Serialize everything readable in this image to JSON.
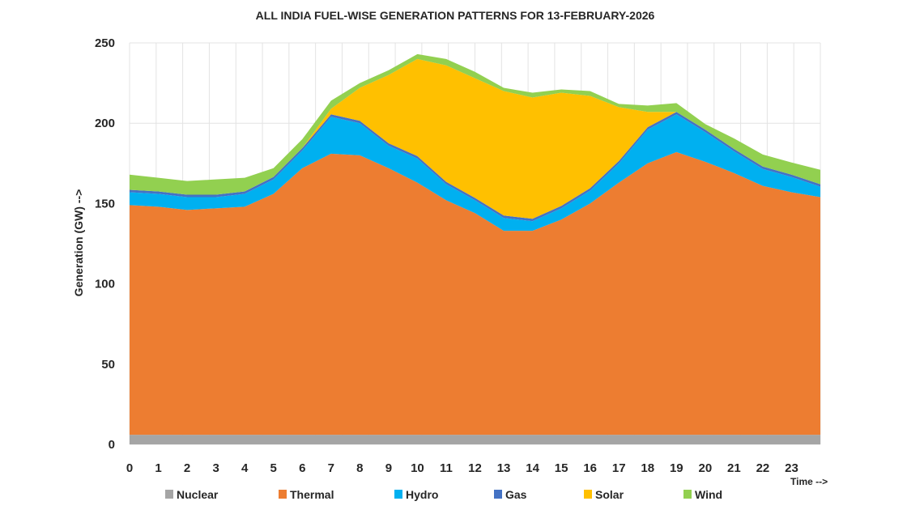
{
  "chart_data": {
    "type": "area",
    "stacked": true,
    "title": "ALL INDIA FUEL-WISE GENERATION PATTERNS FOR 13-FEBRUARY-2026",
    "xlabel": "Time -->",
    "ylabel": "Generation (GW) -->",
    "xlim": [
      0,
      24
    ],
    "ylim": [
      0,
      250
    ],
    "yticks": [
      0,
      50,
      100,
      150,
      200,
      250
    ],
    "xtick_labels": [
      "0",
      "1",
      "2",
      "3",
      "4",
      "5",
      "6",
      "7",
      "8",
      "9",
      "10",
      "11",
      "12",
      "13",
      "14",
      "15",
      "16",
      "17",
      "18",
      "19",
      "20",
      "21",
      "22",
      "23"
    ],
    "grid": true,
    "legend_position": "bottom",
    "x": [
      0,
      1,
      2,
      3,
      4,
      5,
      6,
      7,
      8,
      9,
      10,
      11,
      12,
      13,
      14,
      15,
      16,
      17,
      18,
      19,
      20,
      21,
      22,
      23,
      24
    ],
    "series": [
      {
        "name": "Nuclear",
        "color": "#a5a5a5",
        "values": [
          6,
          6,
          6,
          6,
          6,
          6,
          6,
          6,
          6,
          6,
          6,
          6,
          6,
          6,
          6,
          6,
          6,
          6,
          6,
          6,
          6,
          6,
          6,
          6,
          6
        ]
      },
      {
        "name": "Thermal",
        "color": "#ed7d31",
        "values": [
          143,
          142,
          140,
          141,
          142,
          150,
          166,
          175,
          174,
          166,
          157,
          146,
          138,
          127,
          127,
          134,
          144,
          157,
          169,
          176,
          170,
          163,
          155,
          151,
          148
        ]
      },
      {
        "name": "Hydro",
        "color": "#00b0f0",
        "values": [
          8,
          8,
          8,
          7,
          8,
          9,
          11,
          23,
          20,
          14,
          15,
          10,
          8,
          8,
          6,
          7,
          8,
          12,
          21,
          23.5,
          18.5,
          13.5,
          10.5,
          9.5,
          6.5
        ]
      },
      {
        "name": "Gas",
        "color": "#4472c4",
        "values": [
          1.5,
          1.5,
          1.5,
          1.5,
          1.5,
          1.5,
          1.5,
          1.5,
          1.5,
          1.5,
          1.5,
          1.5,
          1.5,
          1.5,
          1.5,
          1.5,
          1.5,
          1.5,
          1.5,
          1.5,
          1.5,
          1.5,
          1.5,
          1.5,
          1.5
        ]
      },
      {
        "name": "Solar",
        "color": "#ffc000",
        "values": [
          0,
          0,
          0,
          0,
          0,
          0,
          0,
          3.5,
          20.5,
          42.5,
          60.5,
          72.5,
          74.5,
          77.5,
          75.5,
          70.5,
          57.5,
          33.5,
          9.5,
          0,
          0,
          0,
          0,
          0,
          0
        ]
      },
      {
        "name": "Wind",
        "color": "#92d050",
        "values": [
          9.5,
          8.5,
          8.5,
          9.5,
          8.5,
          5.5,
          5.5,
          5,
          3,
          3,
          3,
          4,
          4,
          2,
          3,
          2,
          3,
          2,
          4,
          5.5,
          3.5,
          6.5,
          7.5,
          7.5,
          9
        ]
      }
    ]
  }
}
